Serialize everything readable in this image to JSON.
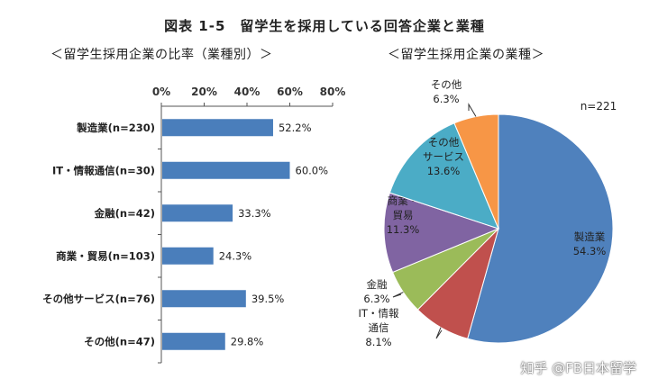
{
  "title": "図表 1-5　留学生を採用している回答企業と業種",
  "chart_data": [
    {
      "type": "bar",
      "orientation": "horizontal",
      "title": "＜留学生採用企業の比率（業種別）＞",
      "categories": [
        "製造業(n=230)",
        "IT・情報通信(n=30)",
        "金融(n=42)",
        "商業・貿易(n=103)",
        "その他サービス(n=76)",
        "その他(n=47)"
      ],
      "values": [
        52.2,
        60.0,
        33.3,
        24.3,
        39.5,
        29.8
      ],
      "value_labels": [
        "52.2%",
        "60.0%",
        "33.3%",
        "24.3%",
        "39.5%",
        "29.8%"
      ],
      "xlim": [
        0,
        80
      ],
      "x_ticks": [
        "0%",
        "20%",
        "40%",
        "60%",
        "80%"
      ],
      "xaxis_position": "top",
      "grid": false,
      "color": "#4A7EBB"
    },
    {
      "type": "pie",
      "title": "＜留学生採用企業の業種＞",
      "annotation": "n=221",
      "slices": [
        {
          "label": "製造業",
          "value": 54.3,
          "value_label": "54.3%",
          "color": "#4F81BD"
        },
        {
          "label": "IT・情報通信",
          "value": 8.1,
          "value_label": "8.1%",
          "color": "#C0504D"
        },
        {
          "label": "金融",
          "value": 6.3,
          "value_label": "6.3%",
          "color": "#9BBB59"
        },
        {
          "label": "商業・貿易",
          "value": 11.3,
          "value_label": "11.3%",
          "color": "#8064A2"
        },
        {
          "label": "その他サービス",
          "value": 13.6,
          "value_label": "13.6%",
          "color": "#4BACC6"
        },
        {
          "label": "その他",
          "value": 6.3,
          "value_label": "6.3%",
          "color": "#F79646"
        }
      ]
    }
  ],
  "watermark": "知乎 @FB日本留学"
}
